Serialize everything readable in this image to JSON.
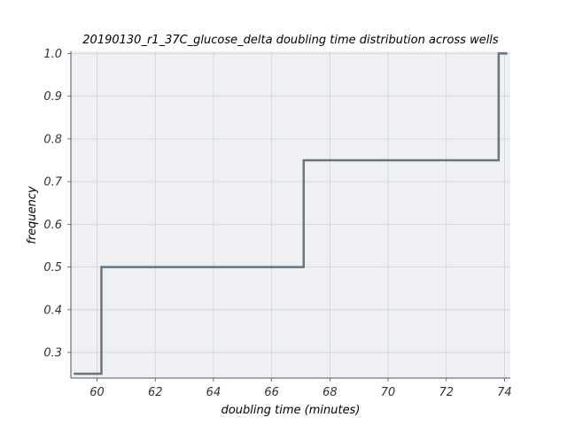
{
  "chart_data": {
    "type": "line",
    "step": "post",
    "title": "20190130_r1_37C_glucose_delta doubling time distribution across wells",
    "xlabel": "doubling time (minutes)",
    "ylabel": "frequency",
    "xlim": [
      59.1,
      74.2
    ],
    "ylim": [
      0.24,
      1.005
    ],
    "xticks": [
      60,
      62,
      64,
      66,
      68,
      70,
      72,
      74
    ],
    "yticks": [
      0.3,
      0.4,
      0.5,
      0.6,
      0.7,
      0.8,
      0.9,
      1.0
    ],
    "xtick_labels": [
      "60",
      "62",
      "64",
      "66",
      "68",
      "70",
      "72",
      "74"
    ],
    "ytick_labels": [
      "0.3",
      "0.4",
      "0.5",
      "0.6",
      "0.7",
      "0.8",
      "0.9",
      "1.0"
    ],
    "grid": true,
    "series": [
      {
        "color": "#66757f",
        "x": [
          59.2,
          60.15,
          60.15,
          67.1,
          67.1,
          73.8,
          73.8,
          74.1
        ],
        "y": [
          0.25,
          0.25,
          0.5,
          0.5,
          0.75,
          0.75,
          1.0,
          1.0
        ]
      }
    ],
    "colors": {
      "plot_background": "#eef0f4",
      "grid": "#cfd3da",
      "axis": "#555555"
    }
  }
}
